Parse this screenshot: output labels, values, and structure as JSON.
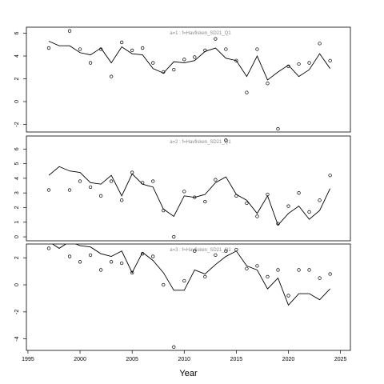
{
  "chart_data": [
    {
      "type": "line",
      "title": "a=1  :  f=Havfisken_SD21_Q1",
      "x": [
        1997,
        1998,
        1999,
        2000,
        2001,
        2002,
        2003,
        2004,
        2005,
        2006,
        2007,
        2008,
        2009,
        2010,
        2011,
        2012,
        2013,
        2014,
        2015,
        2016,
        2017,
        2018,
        2019,
        2020,
        2021,
        2022,
        2023,
        2024
      ],
      "series": [
        {
          "style": "line",
          "color": "#000000",
          "values": [
            5.3,
            4.9,
            4.9,
            4.3,
            4.1,
            4.7,
            3.4,
            4.8,
            4.2,
            4.1,
            2.9,
            2.5,
            3.5,
            3.4,
            3.6,
            4.4,
            4.7,
            3.8,
            3.6,
            2.2,
            4.0,
            1.9,
            2.6,
            3.2,
            2.2,
            2.8,
            4.2,
            2.9
          ]
        },
        {
          "style": "points",
          "color": "#000000",
          "values": [
            4.7,
            null,
            6.2,
            4.6,
            3.4,
            4.6,
            2.2,
            5.2,
            4.5,
            4.7,
            3.4,
            2.6,
            2.8,
            3.7,
            3.9,
            4.5,
            5.5,
            4.6,
            3.6,
            0.8,
            4.6,
            1.6,
            -2.4,
            3.1,
            3.3,
            3.4,
            5.1,
            3.6
          ]
        }
      ],
      "xlim": [
        1994.85,
        2025.95
      ],
      "ylim": [
        -2.67,
        6.53
      ],
      "yticks": [
        {
          "value": -2,
          "label": "-2"
        },
        0,
        2,
        4,
        6
      ]
    },
    {
      "type": "line",
      "title": "a=2  :  f=Havfisken_SD21_Q1",
      "x": [
        1997,
        1998,
        1999,
        2000,
        2001,
        2002,
        2003,
        2004,
        2005,
        2006,
        2007,
        2008,
        2009,
        2010,
        2011,
        2012,
        2013,
        2014,
        2015,
        2016,
        2017,
        2018,
        2019,
        2020,
        2021,
        2022,
        2023,
        2024
      ],
      "series": [
        {
          "style": "line",
          "color": "#000000",
          "values": [
            4.2,
            4.8,
            4.5,
            4.4,
            3.7,
            3.6,
            4.2,
            2.8,
            4.3,
            3.6,
            3.4,
            1.9,
            1.4,
            2.8,
            2.7,
            2.9,
            3.7,
            4.1,
            2.9,
            2.5,
            1.6,
            2.8,
            0.8,
            1.6,
            2.1,
            1.2,
            1.8,
            3.3
          ]
        },
        {
          "style": "points",
          "color": "#000000",
          "values": [
            3.2,
            null,
            3.2,
            3.8,
            3.4,
            2.8,
            3.8,
            2.5,
            4.4,
            3.7,
            3.8,
            1.8,
            0,
            3.1,
            2.7,
            2.4,
            3.9,
            6.6,
            2.8,
            2.3,
            1.4,
            2.9,
            0.9,
            2.1,
            3.0,
            1.7,
            2.5,
            4.2
          ]
        }
      ],
      "xlim": [
        1994.85,
        2025.95
      ],
      "ylim": [
        -0.27,
        6.89
      ],
      "yticks": [
        0,
        1,
        2,
        3,
        4,
        5,
        6
      ]
    },
    {
      "type": "line",
      "title": "a=3  :  f=Havfisken_SD21_Q1",
      "xlabel": "Year",
      "x": [
        1997,
        1998,
        1999,
        2000,
        2001,
        2002,
        2003,
        2004,
        2005,
        2006,
        2007,
        2008,
        2009,
        2010,
        2011,
        2012,
        2013,
        2014,
        2015,
        2016,
        2017,
        2018,
        2019,
        2020,
        2021,
        2022,
        2023,
        2024
      ],
      "series": [
        {
          "style": "line",
          "color": "#000000",
          "values": [
            3.2,
            2.7,
            3.2,
            2.9,
            2.8,
            2.3,
            2.1,
            2.5,
            0.9,
            2.4,
            1.8,
            0.9,
            -0.4,
            -0.4,
            1.1,
            0.8,
            1.5,
            2.1,
            2.5,
            1.4,
            1.1,
            -0.3,
            0.5,
            -1.5,
            -0.65,
            -0.65,
            -1.1,
            -0.3
          ]
        },
        {
          "style": "points",
          "color": "#000000",
          "values": [
            2.7,
            null,
            2.1,
            1.7,
            2.2,
            1.1,
            1.7,
            1.6,
            0.9,
            2.3,
            2.1,
            0,
            -4.6,
            0.3,
            2.5,
            0.6,
            2.2,
            2.5,
            2.6,
            1.2,
            1.4,
            0.6,
            1.1,
            -0.8,
            1.1,
            1.1,
            0.5,
            0.8
          ]
        }
      ],
      "xlim": [
        1994.85,
        2025.95
      ],
      "ylim": [
        -4.85,
        3.02
      ],
      "yticks": [
        {
          "value": -4,
          "label": "-4"
        },
        {
          "value": -2,
          "label": "-2"
        },
        0,
        2
      ],
      "xticks": [
        1995,
        2000,
        2005,
        2010,
        2015,
        2020,
        2025
      ]
    }
  ]
}
